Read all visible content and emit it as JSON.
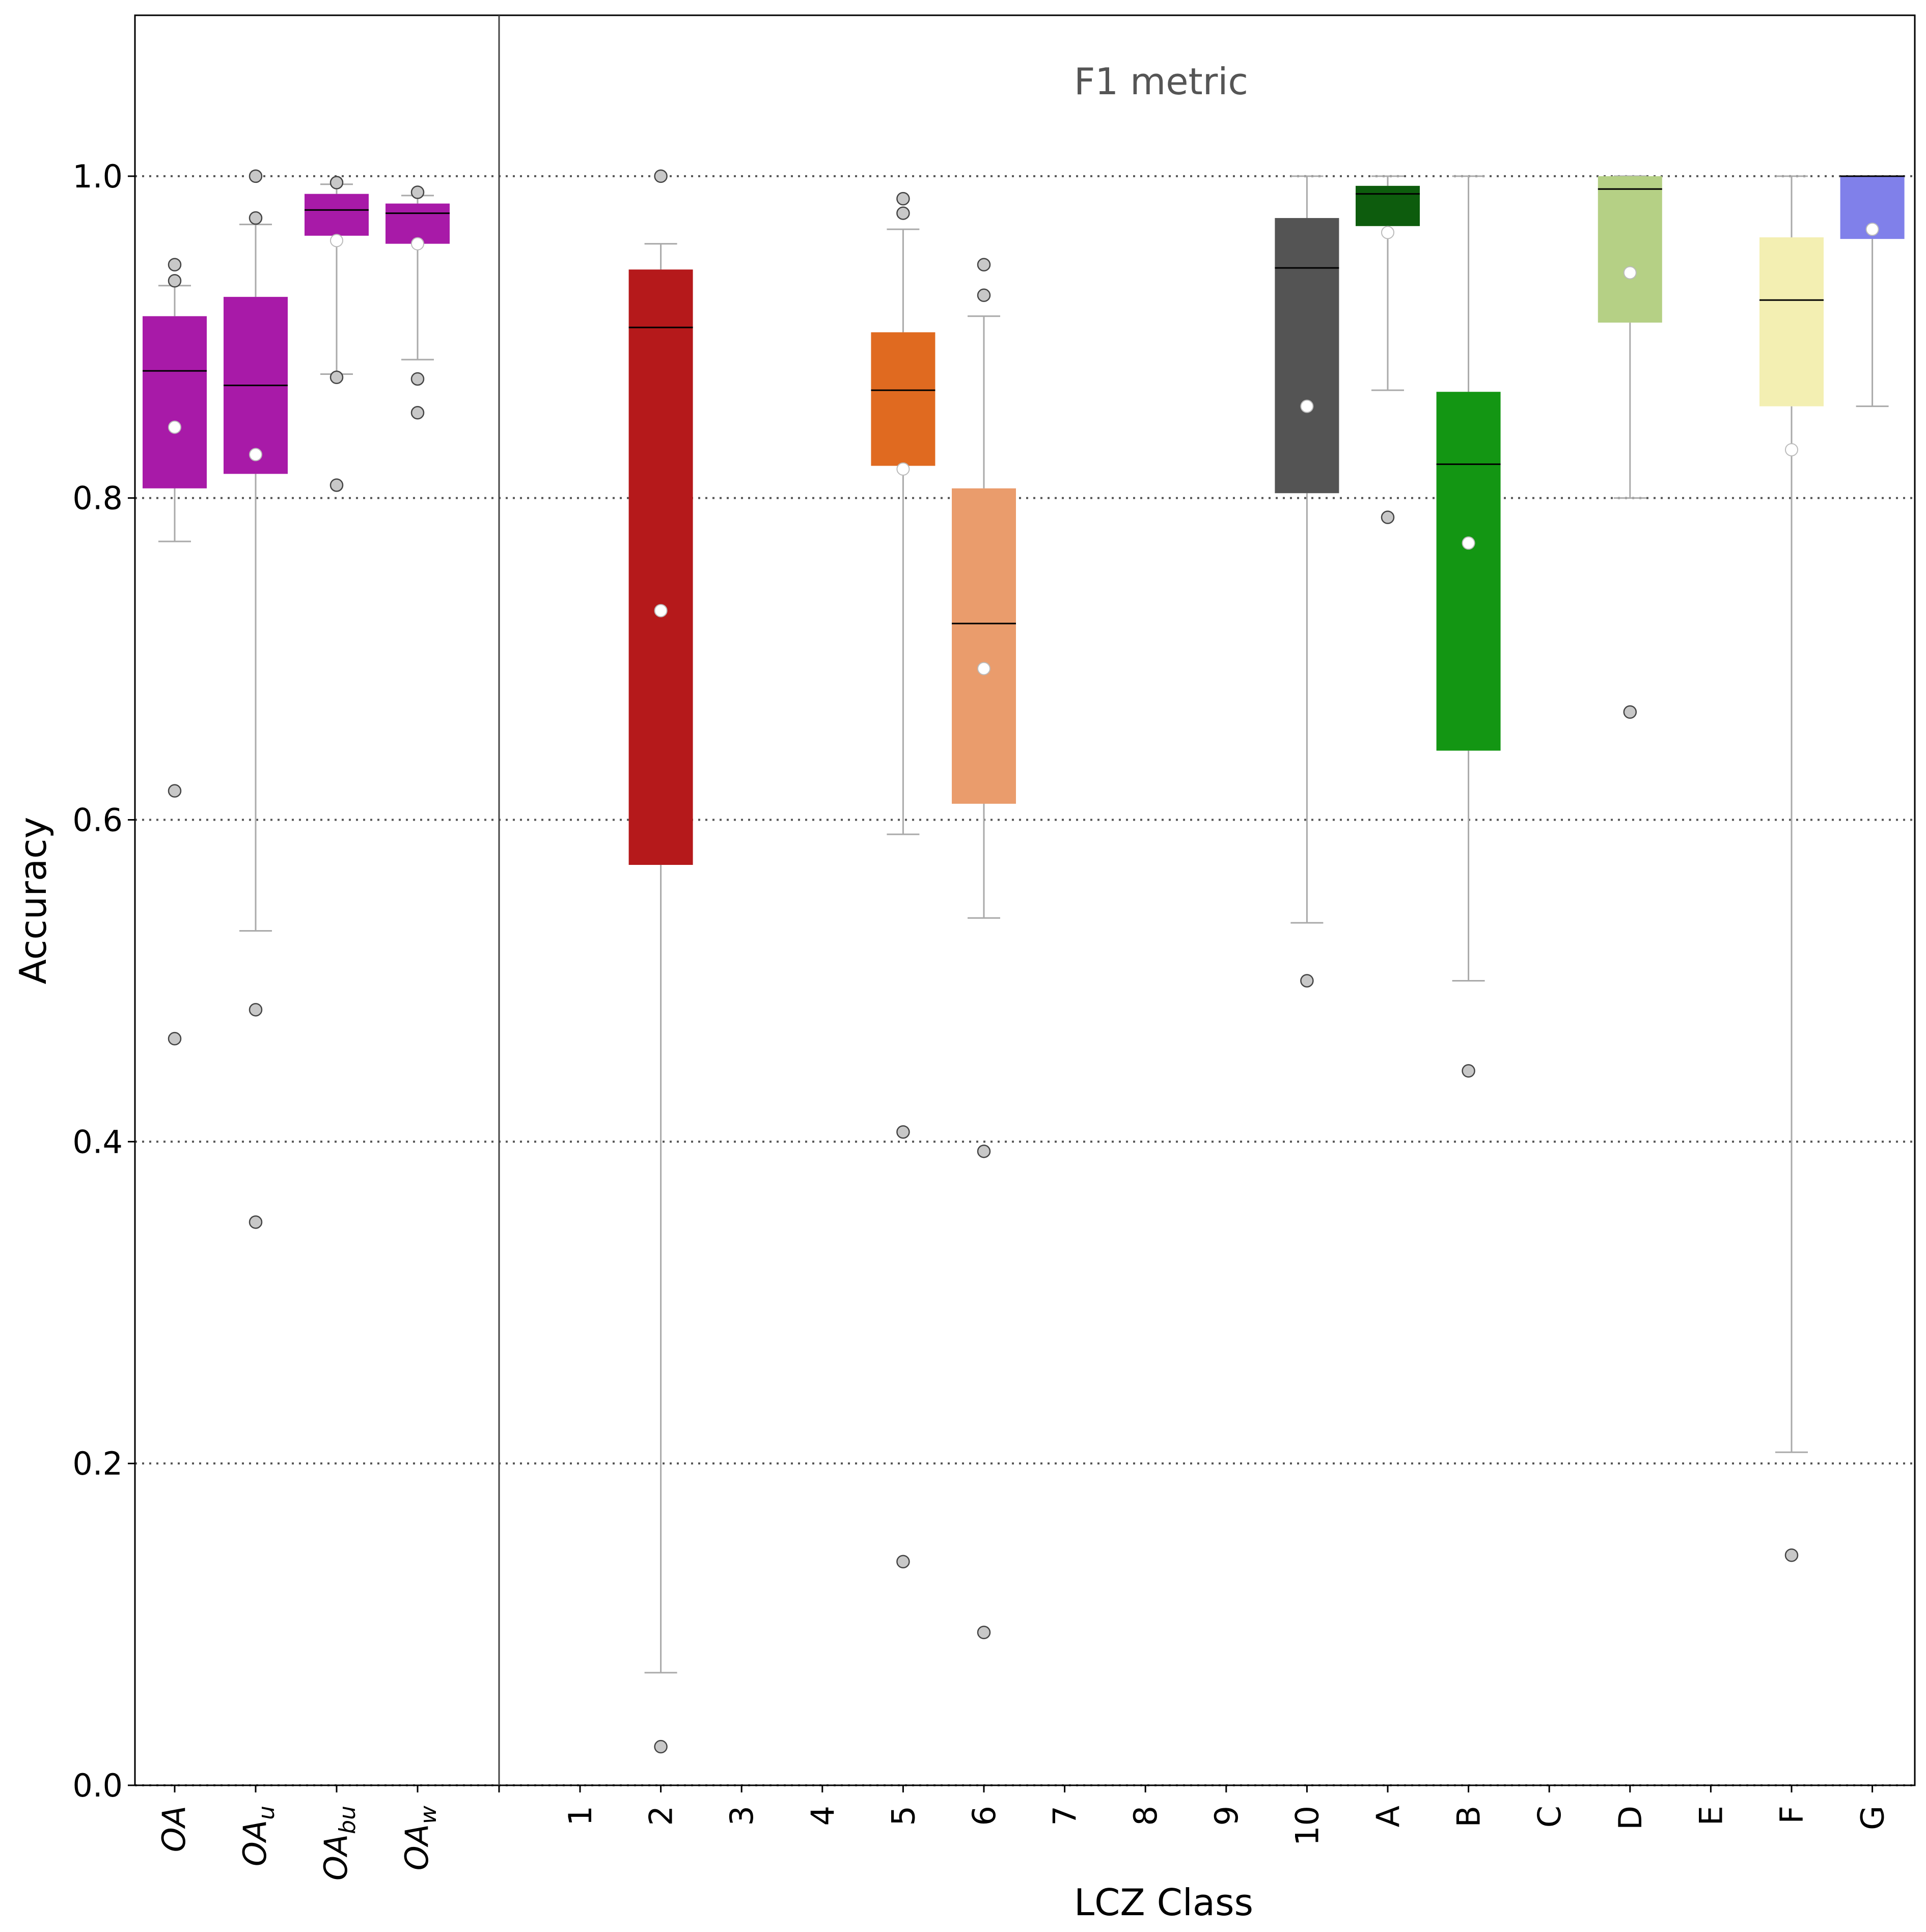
{
  "chart_data": {
    "type": "box",
    "title": "",
    "annotation": "F1 metric",
    "xlabel": "LCZ Class",
    "ylabel": "Accuracy",
    "ylim": [
      0,
      1.1
    ],
    "yticks": [
      "0.0",
      "0.2",
      "0.4",
      "0.6",
      "0.8",
      "1.0"
    ],
    "grid": "horizontal dotted at y ticks",
    "left_group": [
      "OA",
      "OA_u",
      "OA_bu",
      "OA_w"
    ],
    "left_labels": [
      {
        "base": "OA",
        "sub": ""
      },
      {
        "base": "OA",
        "sub": "u"
      },
      {
        "base": "OA",
        "sub": "bu"
      },
      {
        "base": "OA",
        "sub": "w"
      }
    ],
    "categories": [
      "1",
      "2",
      "3",
      "4",
      "5",
      "6",
      "7",
      "8",
      "9",
      "10",
      "A",
      "B",
      "C",
      "D",
      "E",
      "F",
      "G"
    ],
    "boxes": [
      {
        "label": "OA",
        "color": "#a81aa8",
        "q1": 0.806,
        "median": 0.879,
        "q3": 0.913,
        "wlo": 0.773,
        "whi": 0.932,
        "mean": 0.844,
        "outliers": [
          0.945,
          0.935,
          0.618,
          0.464
        ]
      },
      {
        "label": "OA_u",
        "color": "#a81aa8",
        "q1": 0.815,
        "median": 0.87,
        "q3": 0.925,
        "wlo": 0.531,
        "whi": 0.97,
        "mean": 0.827,
        "outliers": [
          1.0,
          0.974,
          0.482,
          0.35
        ]
      },
      {
        "label": "OA_bu",
        "color": "#a81aa8",
        "q1": 0.963,
        "median": 0.979,
        "q3": 0.989,
        "wlo": 0.877,
        "whi": 0.995,
        "mean": 0.96,
        "outliers": [
          0.996,
          0.875,
          0.808
        ]
      },
      {
        "label": "OA_w",
        "color": "#a81aa8",
        "q1": 0.958,
        "median": 0.977,
        "q3": 0.983,
        "wlo": 0.886,
        "whi": 0.988,
        "mean": 0.958,
        "outliers": [
          0.99,
          0.874,
          0.853
        ]
      },
      {
        "label": "2",
        "color": "#b5191b",
        "q1": 0.572,
        "median": 0.906,
        "q3": 0.942,
        "wlo": 0.07,
        "whi": 0.958,
        "mean": 0.73,
        "outliers": [
          1.0,
          0.024
        ]
      },
      {
        "label": "5",
        "color": "#e06a20",
        "q1": 0.82,
        "median": 0.867,
        "q3": 0.903,
        "wlo": 0.591,
        "whi": 0.967,
        "mean": 0.818,
        "outliers": [
          0.986,
          0.977,
          0.406,
          0.139
        ]
      },
      {
        "label": "6",
        "color": "#ea9c6c",
        "q1": 0.61,
        "median": 0.722,
        "q3": 0.806,
        "wlo": 0.539,
        "whi": 0.913,
        "mean": 0.694,
        "outliers": [
          0.945,
          0.926,
          0.394,
          0.095
        ]
      },
      {
        "label": "10",
        "color": "#545454",
        "q1": 0.803,
        "median": 0.943,
        "q3": 0.974,
        "wlo": 0.536,
        "whi": 1.0,
        "mean": 0.857,
        "outliers": [
          0.5
        ]
      },
      {
        "label": "A",
        "color": "#0d5c0d",
        "q1": 0.969,
        "median": 0.989,
        "q3": 0.994,
        "wlo": 0.867,
        "whi": 1.0,
        "mean": 0.965,
        "outliers": [
          0.788
        ]
      },
      {
        "label": "B",
        "color": "#139613",
        "q1": 0.643,
        "median": 0.821,
        "q3": 0.866,
        "wlo": 0.5,
        "whi": 1.0,
        "mean": 0.772,
        "outliers": [
          0.444
        ]
      },
      {
        "label": "D",
        "color": "#b5d085",
        "q1": 0.909,
        "median": 0.992,
        "q3": 1.0,
        "wlo": 0.8,
        "whi": 1.0,
        "mean": 0.94,
        "outliers": [
          0.667
        ]
      },
      {
        "label": "F",
        "color": "#f3efb2",
        "q1": 0.857,
        "median": 0.923,
        "q3": 0.962,
        "wlo": 0.207,
        "whi": 1.0,
        "mean": 0.83,
        "outliers": [
          0.143
        ]
      },
      {
        "label": "G",
        "color": "#8080ea",
        "q1": 0.961,
        "median": 1.0,
        "q3": 1.0,
        "wlo": 0.857,
        "whi": 1.0,
        "mean": 0.967,
        "outliers": []
      }
    ]
  }
}
